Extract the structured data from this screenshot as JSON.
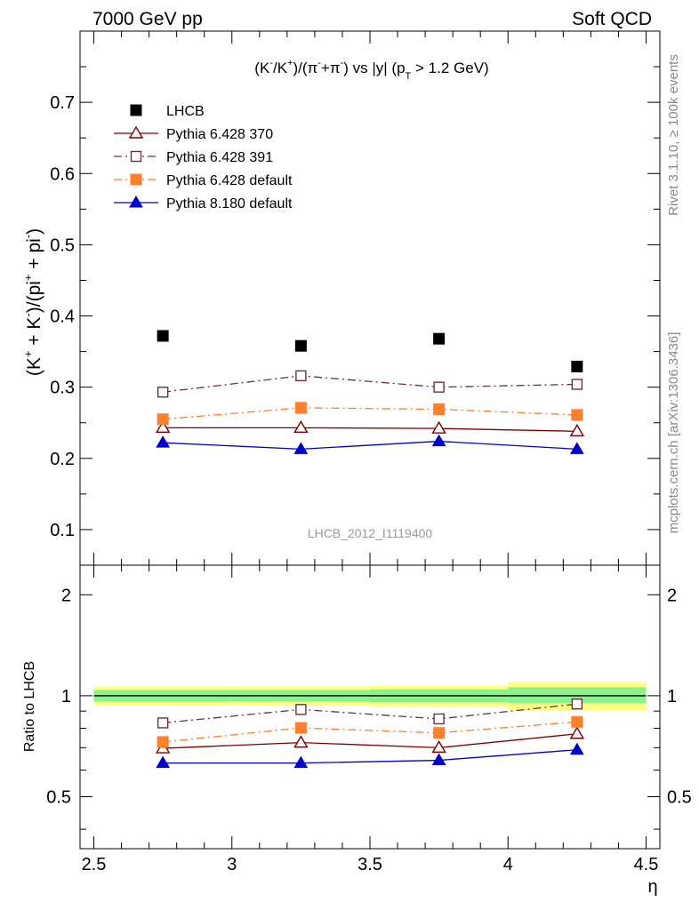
{
  "header": {
    "energy": "7000 GeV pp",
    "category": "Soft QCD"
  },
  "side": {
    "rivet": "Rivet 3.1.10, ≥ 100k events",
    "site": "mcplots.cern.ch [arXiv:1306.3436]"
  },
  "watermark": "LHCB_2012_I1119400",
  "chart_data": [
    {
      "type": "scatter",
      "title_parts": {
        "a": "(K",
        "a_sup": "-",
        "b": "/K",
        "b_sup": "+",
        "c": ")/(π",
        "c_sup": "-",
        "d": "+π",
        "d_sup": "-",
        "e": ") vs |y| (p",
        "e_sub": "T",
        "f": " > 1.2 GeV)"
      },
      "ylabel_parts": {
        "a": "(K",
        "a_sup": "+",
        "b": " + K",
        "b_sup": "-",
        "c": ")/(pi",
        "c_sup": "+",
        "d": " + pi",
        "d_sup": "-",
        "e": ")"
      },
      "xlim": [
        2.45,
        4.55
      ],
      "ylim": [
        0.05,
        0.8
      ],
      "x_ticks": [
        2.5,
        3,
        3.5,
        4,
        4.5
      ],
      "y_ticks": [
        0.1,
        0.2,
        0.3,
        0.4,
        0.5,
        0.6,
        0.7
      ],
      "x": [
        2.75,
        3.25,
        3.75,
        4.25
      ],
      "legend_position": "top-left",
      "series": [
        {
          "name": "LHCB",
          "values": [
            0.372,
            0.358,
            0.368,
            0.329
          ],
          "color": "#000000",
          "marker": "square-filled",
          "line": "none"
        },
        {
          "name": "Pythia 6.428 370",
          "values": [
            0.243,
            0.243,
            0.242,
            0.238
          ],
          "color": "#800000",
          "marker": "triangle-open",
          "line": "solid"
        },
        {
          "name": "Pythia 6.428 391",
          "values": [
            0.293,
            0.316,
            0.3,
            0.304
          ],
          "color": "#6b3040",
          "marker": "square-open",
          "line": "dash-dot"
        },
        {
          "name": "Pythia 6.428 default",
          "values": [
            0.255,
            0.271,
            0.269,
            0.261
          ],
          "color": "#ff7f2a",
          "marker": "square-filled",
          "line": "dash-dot"
        },
        {
          "name": "Pythia 8.180 default",
          "values": [
            0.222,
            0.213,
            0.224,
            0.213
          ],
          "color": "#0000cc",
          "marker": "triangle-filled",
          "line": "solid"
        }
      ]
    },
    {
      "type": "line",
      "ylabel": "Ratio to LHCB",
      "xlabel": "η",
      "xlim": [
        2.45,
        4.55
      ],
      "ylim": [
        0.35,
        2.45
      ],
      "y_ticks": [
        0.5,
        1,
        2
      ],
      "x_ticks": [
        2.5,
        3,
        3.5,
        4,
        4.5
      ],
      "x_tick_labels": [
        "2.5",
        "3",
        "3.5",
        "4",
        "4.5"
      ],
      "y_tick_labels": [
        "0.5",
        "1",
        "2"
      ],
      "x": [
        2.75,
        3.25,
        3.75,
        4.25
      ],
      "bands": [
        {
          "x_range": [
            2.5,
            3.0
          ],
          "inner": [
            0.96,
            1.04
          ],
          "outer": [
            0.935,
            1.065
          ]
        },
        {
          "x_range": [
            3.0,
            3.5
          ],
          "inner": [
            0.96,
            1.04
          ],
          "outer": [
            0.935,
            1.065
          ]
        },
        {
          "x_range": [
            3.5,
            4.0
          ],
          "inner": [
            0.955,
            1.045
          ],
          "outer": [
            0.93,
            1.07
          ]
        },
        {
          "x_range": [
            4.0,
            4.5
          ],
          "inner": [
            0.95,
            1.06
          ],
          "outer": [
            0.905,
            1.1
          ]
        }
      ],
      "series": [
        {
          "name": "Pythia 6.428 370",
          "values": [
            0.697,
            0.725,
            0.7,
            0.77
          ],
          "color": "#800000",
          "marker": "triangle-open",
          "line": "solid"
        },
        {
          "name": "Pythia 6.428 391",
          "values": [
            0.83,
            0.91,
            0.853,
            0.945
          ],
          "color": "#6b3040",
          "marker": "square-open",
          "line": "dash-dot"
        },
        {
          "name": "Pythia 6.428 default",
          "values": [
            0.728,
            0.802,
            0.775,
            0.836
          ],
          "color": "#ff7f2a",
          "marker": "square-filled",
          "line": "dash-dot"
        },
        {
          "name": "Pythia 8.180 default",
          "values": [
            0.63,
            0.63,
            0.642,
            0.69
          ],
          "color": "#0000cc",
          "marker": "triangle-filled",
          "line": "solid"
        }
      ]
    }
  ]
}
